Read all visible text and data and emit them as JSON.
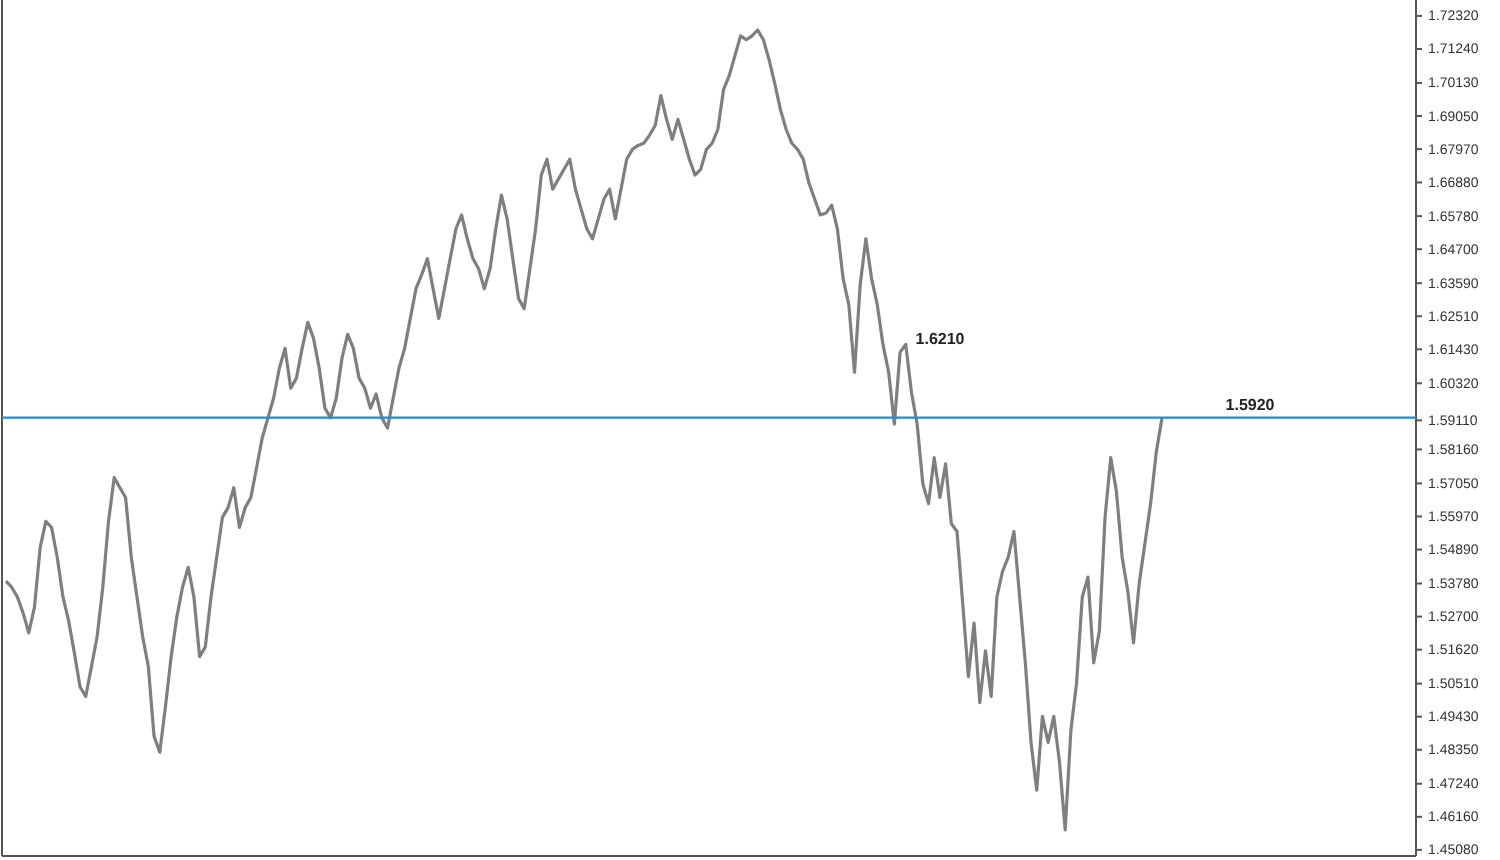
{
  "chart_data": {
    "type": "line",
    "annotations": [
      "1.6210"
    ],
    "categories": [
      null,
      null,
      null,
      null,
      null,
      null,
      null,
      null,
      null,
      null,
      null,
      null,
      null,
      null,
      null,
      null,
      null,
      null,
      null,
      null,
      null,
      null,
      null,
      null,
      null,
      null,
      null,
      null,
      null,
      null,
      null,
      null,
      null,
      null,
      null,
      null,
      null,
      null,
      null,
      null,
      null,
      null,
      null,
      null,
      null,
      null,
      null,
      null,
      null,
      null,
      null,
      null,
      null,
      null,
      null,
      null,
      null,
      null,
      null,
      null,
      null,
      null,
      null,
      null,
      null,
      null,
      null,
      null,
      null,
      null,
      null,
      null,
      null,
      null,
      null,
      null,
      null,
      null,
      null,
      null,
      null,
      null,
      null,
      null,
      null,
      null,
      null,
      null,
      null,
      null,
      null,
      null,
      null,
      null,
      null,
      null,
      null,
      null,
      null,
      null,
      null,
      null,
      null,
      null,
      null,
      null,
      null,
      null,
      null,
      null,
      null,
      null,
      null,
      null,
      null,
      null,
      null,
      null,
      null,
      null,
      null,
      null,
      null,
      null,
      null,
      null,
      null,
      null,
      null,
      null,
      null,
      null,
      null,
      null,
      null,
      null,
      null,
      null,
      null,
      null,
      null,
      null,
      null,
      null,
      null,
      null,
      null,
      null,
      null,
      null,
      null,
      null,
      null,
      null,
      null,
      null,
      null,
      null,
      null,
      null,
      null,
      null,
      null,
      null,
      null,
      null,
      null,
      null,
      null,
      null,
      null,
      null,
      null,
      null,
      null,
      null,
      null,
      null,
      null,
      null,
      null,
      null,
      null,
      null,
      null,
      null,
      null,
      null,
      null,
      null,
      null,
      null,
      null,
      null,
      null,
      null,
      null,
      null,
      null,
      null,
      null,
      null,
      null,
      null
    ],
    "series": [
      {
        "color": "#7f7f7f",
        "values": [
          1.5386,
          1.5366,
          1.5334,
          1.5282,
          1.5217,
          1.5301,
          1.5496,
          1.5581,
          1.5561,
          1.5464,
          1.5334,
          1.5256,
          1.5152,
          1.5041,
          1.5009,
          1.5106,
          1.5204,
          1.5366,
          1.5581,
          1.5724,
          1.5691,
          1.5659,
          1.5464,
          1.5334,
          1.5204,
          1.5106,
          1.4879,
          1.4827,
          1.4976,
          1.5139,
          1.5269,
          1.5366,
          1.5431,
          1.5334,
          1.5139,
          1.5171,
          1.5334,
          1.5464,
          1.5594,
          1.5626,
          1.5691,
          1.5561,
          1.5626,
          1.5659,
          1.5756,
          1.5854,
          1.5919,
          1.5984,
          1.6081,
          1.6146,
          1.6016,
          1.6049,
          1.6146,
          1.6231,
          1.6179,
          1.6081,
          1.5951,
          1.5919,
          1.5984,
          1.6114,
          1.6192,
          1.6146,
          1.6049,
          1.6016,
          1.5951,
          1.5997,
          1.5919,
          1.5886,
          1.5984,
          1.6081,
          1.6146,
          1.6244,
          1.6341,
          1.6387,
          1.6439,
          1.6341,
          1.6244,
          1.6341,
          1.6439,
          1.6536,
          1.6582,
          1.6504,
          1.6439,
          1.6406,
          1.6341,
          1.6406,
          1.6536,
          1.6647,
          1.6569,
          1.6439,
          1.6309,
          1.6276,
          1.6406,
          1.6536,
          1.6712,
          1.6764,
          1.6666,
          1.6699,
          1.6731,
          1.6764,
          1.6666,
          1.6601,
          1.6536,
          1.6504,
          1.6569,
          1.6634,
          1.6666,
          1.6569,
          1.6666,
          1.6764,
          1.6796,
          1.6809,
          1.6816,
          1.6842,
          1.6874,
          1.6972,
          1.6894,
          1.6829,
          1.6894,
          1.6829,
          1.6764,
          1.6712,
          1.6731,
          1.6796,
          1.6816,
          1.6861,
          1.6991,
          1.7037,
          1.7102,
          1.7167,
          1.7154,
          1.7167,
          1.7186,
          1.7154,
          1.7089,
          1.7011,
          1.6926,
          1.6861,
          1.6816,
          1.6796,
          1.6764,
          1.6686,
          1.6634,
          1.6582,
          1.6588,
          1.6614,
          1.6536,
          1.6374,
          1.6289,
          1.6068,
          1.6354,
          1.6504,
          1.6374,
          1.6289,
          1.6159,
          1.6068,
          1.5899,
          1.6133,
          1.6159,
          1.6003,
          1.5899,
          1.5704,
          1.5639,
          1.5789,
          1.5659,
          1.5769,
          1.5574,
          1.5548,
          1.5314,
          1.5074,
          1.5249,
          1.4989,
          1.5158,
          1.5009,
          1.5334,
          1.5418,
          1.5464,
          1.5548,
          1.5334,
          1.5119,
          1.4859,
          1.4703,
          1.4944,
          1.4859,
          1.4944,
          1.4794,
          1.4573,
          1.4898,
          1.5054,
          1.5334,
          1.5399,
          1.5119,
          1.5223,
          1.5594,
          1.5789,
          1.5678,
          1.5464,
          1.5353,
          1.5184,
          1.5379,
          1.5509,
          1.5639,
          1.5808,
          1.5919
        ]
      }
    ],
    "ylim": [
      1.4488,
      1.7284
    ],
    "yticks": [
      {
        "value": 1.7232,
        "label": "1.72320"
      },
      {
        "value": 1.7124,
        "label": "1.71240"
      },
      {
        "value": 1.7013,
        "label": "1.70130"
      },
      {
        "value": 1.6905,
        "label": "1.69050"
      },
      {
        "value": 1.6797,
        "label": "1.67970"
      },
      {
        "value": 1.6688,
        "label": "1.66880"
      },
      {
        "value": 1.6578,
        "label": "1.65780"
      },
      {
        "value": 1.647,
        "label": "1.64700"
      },
      {
        "value": 1.6359,
        "label": "1.63590"
      },
      {
        "value": 1.6251,
        "label": "1.62510"
      },
      {
        "value": 1.6143,
        "label": "1.61430"
      },
      {
        "value": 1.6032,
        "label": "1.60320"
      },
      {
        "value": 1.5911,
        "label": "1.59110"
      },
      {
        "value": 1.5816,
        "label": "1.58160"
      },
      {
        "value": 1.5705,
        "label": "1.57050"
      },
      {
        "value": 1.5597,
        "label": "1.55970"
      },
      {
        "value": 1.5489,
        "label": "1.54890"
      },
      {
        "value": 1.5378,
        "label": "1.53780"
      },
      {
        "value": 1.527,
        "label": "1.52700"
      },
      {
        "value": 1.5162,
        "label": "1.51620"
      },
      {
        "value": 1.5051,
        "label": "1.50510"
      },
      {
        "value": 1.4943,
        "label": "1.49430"
      },
      {
        "value": 1.4835,
        "label": "1.48350"
      },
      {
        "value": 1.4724,
        "label": "1.47240"
      },
      {
        "value": 1.4616,
        "label": "1.46160"
      },
      {
        "value": 1.4508,
        "label": "1.45080"
      }
    ],
    "ref_lines": [
      {
        "axis": "y",
        "value": 1.592,
        "label": "1.5920",
        "color": "#1f8dd6"
      }
    ],
    "grid": false,
    "line_style": "solid"
  }
}
